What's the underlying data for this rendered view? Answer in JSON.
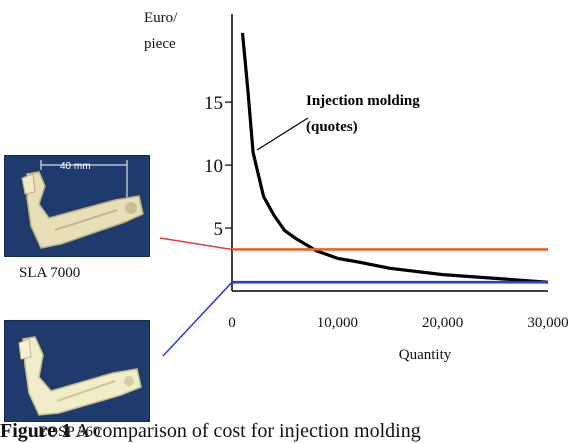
{
  "chart_data": {
    "type": "line",
    "xlabel": "Quantity",
    "ylabel": "Euro/ piece",
    "ylabel_lines": [
      "Euro/",
      "piece"
    ],
    "xlim": [
      0,
      30000
    ],
    "ylim": [
      0,
      22
    ],
    "x_ticks": [
      0,
      10000,
      20000,
      30000
    ],
    "x_tick_labels": [
      "0",
      "10,000",
      "20,000",
      "30,000"
    ],
    "y_ticks": [
      5,
      10,
      15
    ],
    "y_tick_labels": [
      "5",
      "10",
      "15"
    ],
    "grid": false,
    "series": [
      {
        "name": "Injection molding (quotes)",
        "color": "#000000",
        "x": [
          1000,
          1500,
          2000,
          3000,
          4000,
          5000,
          6000,
          7000,
          8000,
          10000,
          12000,
          15000,
          20000,
          25000,
          30000
        ],
        "y": [
          20.5,
          16.0,
          11.0,
          7.5,
          6.0,
          4.8,
          4.2,
          3.7,
          3.2,
          2.6,
          2.3,
          1.8,
          1.3,
          1.0,
          0.7
        ]
      },
      {
        "name": "SLA 7000",
        "color": "#e8632a",
        "x": [
          0,
          30000
        ],
        "y": [
          3.3,
          3.3
        ]
      },
      {
        "name": "EOSP 360",
        "color": "#2b3bd6",
        "x": [
          0,
          30000
        ],
        "y": [
          0.7,
          0.7
        ]
      }
    ],
    "annotations": [
      {
        "text_lines": [
          "Injection molding",
          "(quotes)"
        ],
        "series": "Injection molding (quotes)"
      }
    ]
  },
  "photos": {
    "sla": {
      "caption": "SLA 7000",
      "dimension_label": "40 mm",
      "connector_color": "#e03c3c"
    },
    "eosp": {
      "caption": "EOSP 360",
      "connector_color": "#2b3bd6"
    }
  },
  "caption": {
    "label": "Figure 1",
    "text": "A comparison of cost for injection molding"
  }
}
